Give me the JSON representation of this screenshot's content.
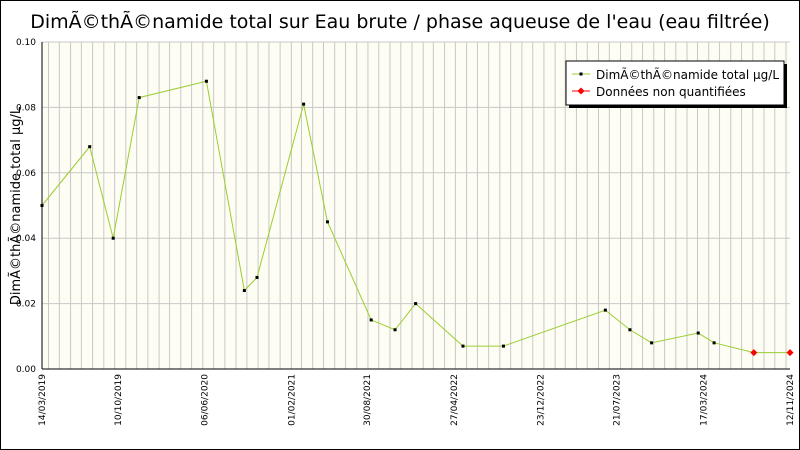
{
  "chart_data": {
    "type": "line",
    "title": "DimÃ©thÃ©namide total sur Eau brute / phase aqueuse de l'eau (eau filtrée)",
    "ylabel": "DimÃ©thÃ©namide total µg/L",
    "xlabel": "",
    "ylim": [
      0,
      0.1
    ],
    "yticks": [
      "0.00",
      "0.02",
      "0.04",
      "0.06",
      "0.08",
      "0.10"
    ],
    "xticks": [
      "14/03/2019",
      "10/10/2019",
      "06/06/2020",
      "01/02/2021",
      "30/08/2021",
      "27/04/2022",
      "23/12/2022",
      "21/07/2023",
      "17/03/2024",
      "12/11/2024"
    ],
    "grid": true,
    "legend_position": "top-right",
    "series": [
      {
        "name": "DimÃ©thÃ©namide total µg/L",
        "color": "#9acd32",
        "marker_color": "#000000",
        "points": [
          {
            "x": "14/03/2019",
            "y": 0.05
          },
          {
            "x": "24/07/2019",
            "y": 0.068
          },
          {
            "x": "27/09/2019",
            "y": 0.04
          },
          {
            "x": "08/12/2019",
            "y": 0.083
          },
          {
            "x": "11/06/2020",
            "y": 0.088
          },
          {
            "x": "24/09/2020",
            "y": 0.024
          },
          {
            "x": "29/10/2020",
            "y": 0.028
          },
          {
            "x": "07/03/2021",
            "y": 0.081
          },
          {
            "x": "12/05/2021",
            "y": 0.045
          },
          {
            "x": "10/09/2021",
            "y": 0.015
          },
          {
            "x": "15/11/2021",
            "y": 0.012
          },
          {
            "x": "11/01/2022",
            "y": 0.02
          },
          {
            "x": "22/05/2022",
            "y": 0.007
          },
          {
            "x": "11/09/2022",
            "y": 0.007
          },
          {
            "x": "20/06/2023",
            "y": 0.018
          },
          {
            "x": "27/08/2023",
            "y": 0.012
          },
          {
            "x": "26/10/2023",
            "y": 0.008
          },
          {
            "x": "03/03/2024",
            "y": 0.011
          },
          {
            "x": "16/04/2024",
            "y": 0.008
          },
          {
            "x": "04/08/2024",
            "y": 0.005
          },
          {
            "x": "12/11/2024",
            "y": 0.005
          }
        ]
      },
      {
        "name": "Données non quantifiées",
        "color": "#ff0000",
        "points": [
          {
            "x": "04/08/2024",
            "y": 0.005
          },
          {
            "x": "12/11/2024",
            "y": 0.005
          }
        ]
      }
    ]
  }
}
